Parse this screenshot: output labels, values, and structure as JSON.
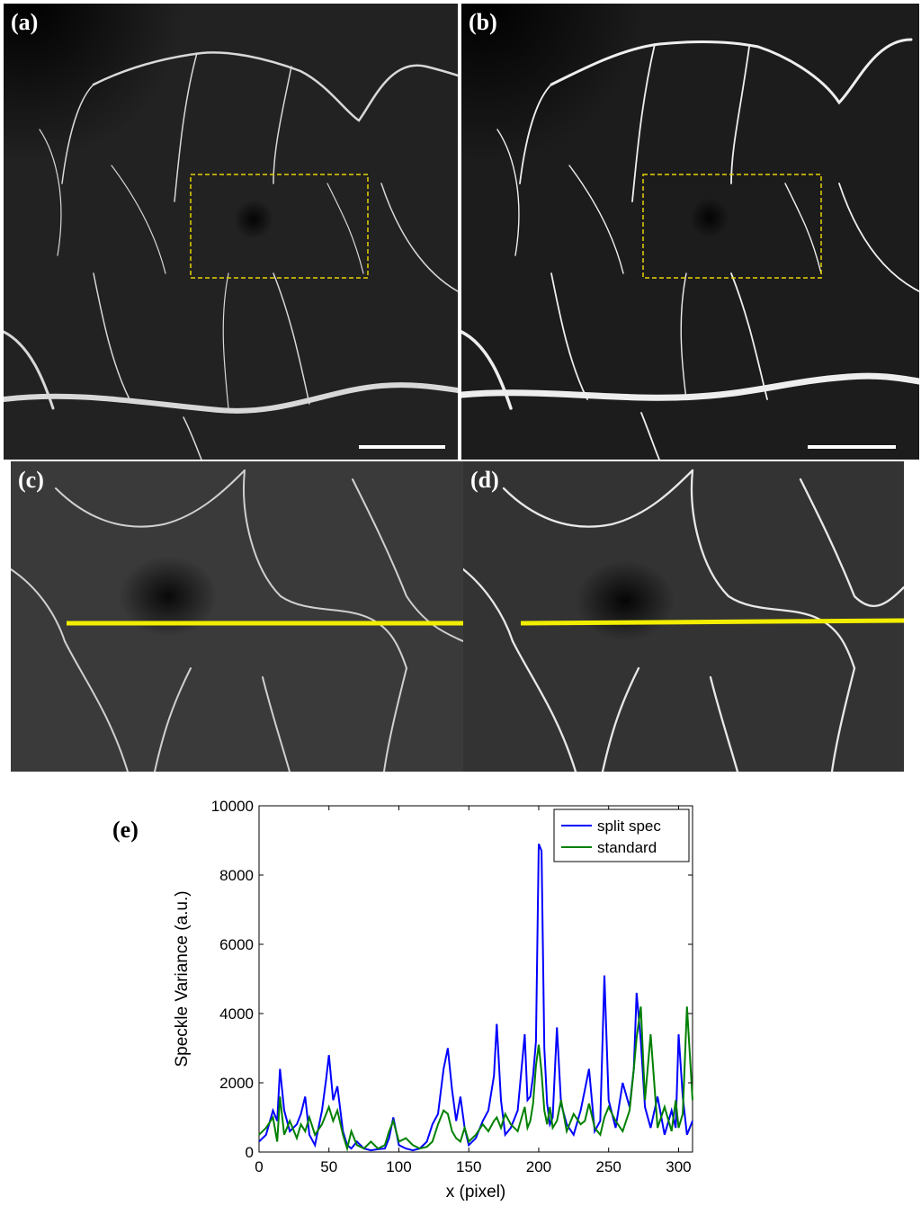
{
  "panels": [
    {
      "id": "a",
      "label": "(a)"
    },
    {
      "id": "b",
      "label": "(b)"
    },
    {
      "id": "c",
      "label": "(c)"
    },
    {
      "id": "d",
      "label": "(d)"
    }
  ],
  "colors": {
    "roi_box": "#e6d200",
    "profile_line": "#f2ee00",
    "split_spec": "#0000ff",
    "standard": "#008000"
  },
  "chart_label": "(e)",
  "chart_data": {
    "type": "line",
    "xlabel": "x (pixel)",
    "ylabel": "Speckle Variance (a.u.)",
    "xlim": [
      0,
      310
    ],
    "ylim": [
      0,
      10000
    ],
    "xticks": [
      0,
      50,
      100,
      150,
      200,
      250,
      300
    ],
    "yticks": [
      0,
      2000,
      4000,
      6000,
      8000,
      10000
    ],
    "legend_position": "top-right",
    "series": [
      {
        "name": "split spec",
        "color": "#0000ff",
        "x": [
          0,
          5,
          10,
          13,
          15,
          18,
          22,
          27,
          30,
          33,
          36,
          40,
          45,
          48,
          50,
          53,
          56,
          60,
          63,
          66,
          70,
          75,
          80,
          85,
          90,
          93,
          96,
          100,
          105,
          110,
          115,
          120,
          124,
          128,
          132,
          135,
          138,
          141,
          144,
          147,
          150,
          155,
          160,
          164,
          168,
          170,
          173,
          176,
          180,
          185,
          190,
          192,
          194,
          196,
          198,
          200,
          202,
          204,
          206,
          208,
          210,
          213,
          216,
          220,
          225,
          230,
          233,
          236,
          240,
          244,
          247,
          250,
          255,
          260,
          265,
          268,
          270,
          273,
          276,
          280,
          285,
          290,
          295,
          298,
          300,
          303,
          306,
          310
        ],
        "y": [
          300,
          500,
          1200,
          900,
          2400,
          1200,
          600,
          800,
          1100,
          1600,
          500,
          200,
          1200,
          2100,
          2800,
          1500,
          1900,
          600,
          200,
          100,
          300,
          100,
          50,
          80,
          100,
          400,
          1000,
          200,
          100,
          50,
          100,
          300,
          800,
          1100,
          2400,
          3000,
          1800,
          900,
          1600,
          700,
          200,
          400,
          900,
          1200,
          2200,
          3700,
          1500,
          500,
          700,
          1200,
          3400,
          1500,
          1600,
          2200,
          3200,
          8900,
          8700,
          3000,
          1400,
          800,
          1000,
          3600,
          1400,
          800,
          500,
          1200,
          1800,
          2400,
          600,
          900,
          5100,
          1500,
          700,
          2000,
          1300,
          2400,
          4600,
          3200,
          1300,
          700,
          1600,
          500,
          1200,
          700,
          3400,
          1600,
          500,
          900
        ]
      },
      {
        "name": "standard",
        "color": "#008000",
        "x": [
          0,
          5,
          10,
          13,
          15,
          18,
          22,
          27,
          30,
          33,
          36,
          40,
          45,
          48,
          50,
          53,
          56,
          60,
          63,
          66,
          70,
          75,
          80,
          85,
          90,
          93,
          96,
          100,
          105,
          110,
          115,
          120,
          124,
          128,
          132,
          135,
          138,
          141,
          144,
          147,
          150,
          155,
          160,
          164,
          168,
          170,
          173,
          176,
          180,
          185,
          190,
          192,
          194,
          196,
          198,
          200,
          202,
          204,
          206,
          208,
          210,
          213,
          216,
          220,
          225,
          230,
          233,
          236,
          240,
          244,
          247,
          250,
          255,
          260,
          265,
          268,
          270,
          273,
          276,
          280,
          285,
          290,
          295,
          298,
          300,
          303,
          306,
          310
        ],
        "y": [
          500,
          700,
          1000,
          300,
          1600,
          500,
          900,
          400,
          800,
          600,
          1000,
          500,
          800,
          1100,
          1300,
          900,
          1200,
          500,
          100,
          600,
          200,
          100,
          300,
          100,
          200,
          600,
          900,
          300,
          400,
          200,
          100,
          150,
          300,
          800,
          1200,
          1100,
          600,
          400,
          300,
          700,
          300,
          500,
          800,
          600,
          900,
          1000,
          700,
          1100,
          800,
          600,
          1300,
          700,
          900,
          1400,
          2500,
          3100,
          2300,
          1200,
          800,
          1300,
          700,
          900,
          1500,
          600,
          1100,
          800,
          900,
          1400,
          700,
          500,
          1000,
          1300,
          900,
          600,
          1200,
          2400,
          3300,
          4200,
          1500,
          3400,
          700,
          1300,
          600,
          1500,
          700,
          1100,
          4200,
          1500
        ]
      }
    ]
  }
}
